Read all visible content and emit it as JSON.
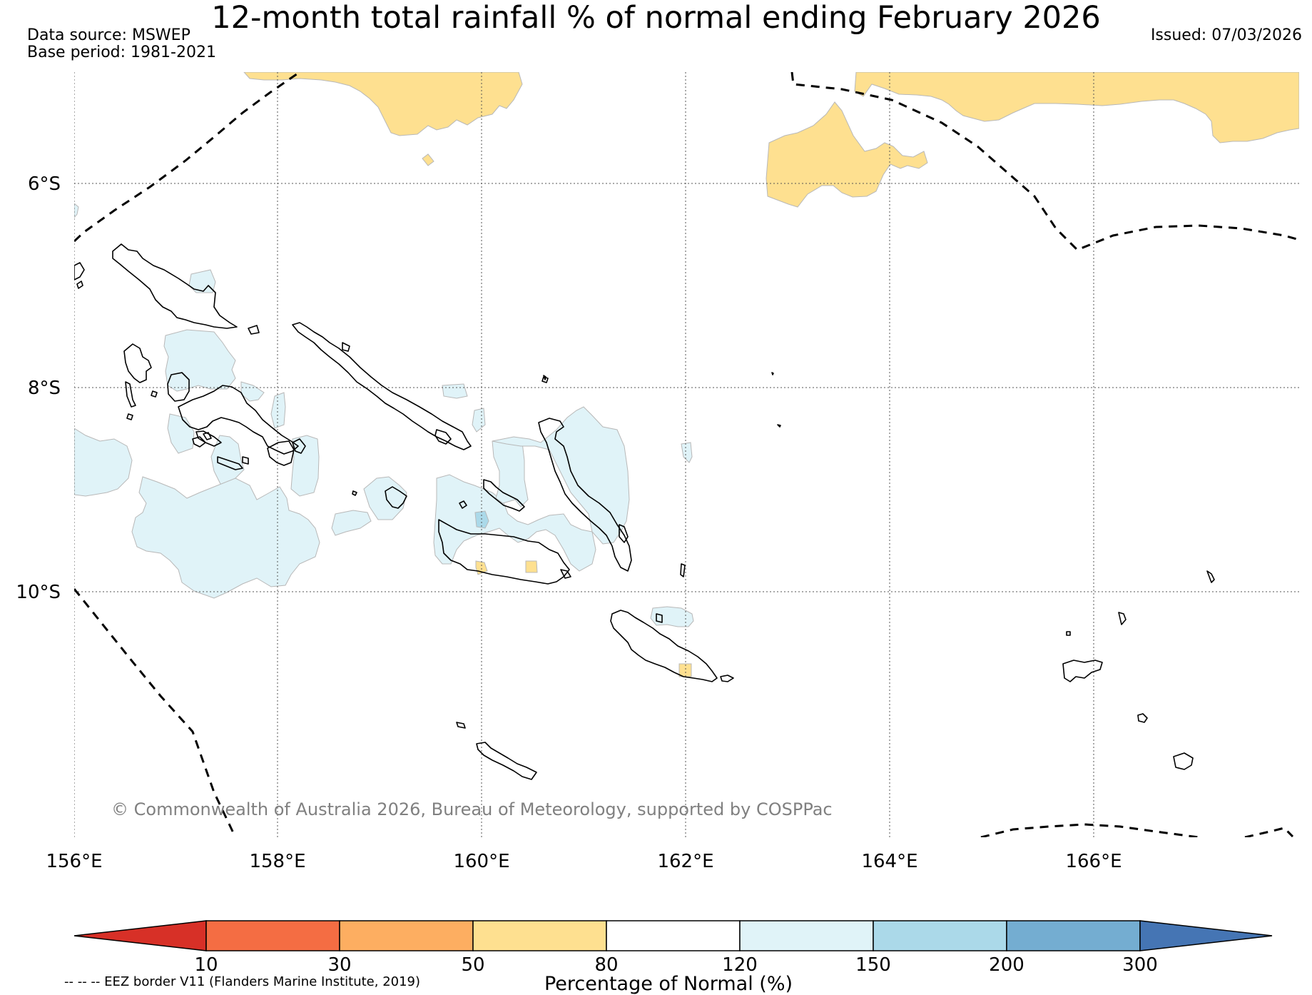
{
  "title": "12-month total rainfall % of normal ending February 2026",
  "data_source": "Data source: MSWEP",
  "base_period": "Base period: 1981-2021",
  "issued": "Issued: 07/03/2026",
  "copyright": "© Commonwealth of Australia 2026, Bureau of Meteorology, supported by COSPPac",
  "map": {
    "lon_ticks": [
      "156°E",
      "158°E",
      "160°E",
      "162°E",
      "164°E",
      "166°E"
    ],
    "lat_ticks": [
      "6°S",
      "8°S",
      "10°S"
    ],
    "extent": {
      "lon": [
        156,
        168
      ],
      "lat": [
        -12.4,
        -4.9
      ]
    },
    "gridlines": true
  },
  "colorbar": {
    "title": "Percentage of Normal (%)",
    "labels": [
      "10",
      "30",
      "50",
      "80",
      "120",
      "150",
      "200",
      "300"
    ],
    "colors": [
      "#d73027",
      "#f46d43",
      "#fdae61",
      "#fee090",
      "#ffffff",
      "#e0f3f8",
      "#abd9e9",
      "#74add1",
      "#4575b4"
    ]
  },
  "legend_note": "-- -- -- EEZ border V11 (Flanders Marine Institute, 2019)",
  "colors": {
    "below_normal": "#fee090",
    "above_normal": "#e0f3f8",
    "well_above_normal": "#abd9e9",
    "grid": "#555555",
    "copyright_text": "#808080"
  }
}
